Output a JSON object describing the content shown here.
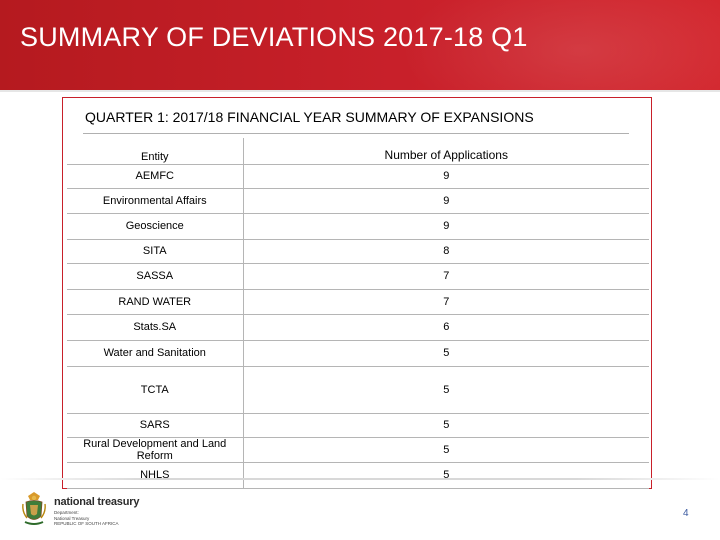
{
  "slide": {
    "title": "SUMMARY OF DEVIATIONS 2017-18 Q1",
    "page_number": "4"
  },
  "table": {
    "caption": "QUARTER 1: 2017/18 FINANCIAL YEAR SUMMARY OF EXPANSIONS",
    "headers": {
      "entity": "Entity",
      "count": "Number of Applications"
    },
    "rows": [
      {
        "entity": "AEMFC",
        "count": "9"
      },
      {
        "entity": "Environmental Affairs",
        "count": "9"
      },
      {
        "entity": "Geoscience",
        "count": "9"
      },
      {
        "entity": "SITA",
        "count": "8"
      },
      {
        "entity": "SASSA",
        "count": "7"
      },
      {
        "entity": "RAND WATER",
        "count": "7"
      },
      {
        "entity": "Stats.SA",
        "count": "6"
      },
      {
        "entity": "Water and Sanitation",
        "count": "5"
      },
      {
        "entity": "TCTA",
        "count": "5"
      },
      {
        "entity": "SARS",
        "count": "5"
      },
      {
        "entity": "Rural Development and Land Reform",
        "count": "5"
      },
      {
        "entity": "NHLS",
        "count": "5"
      }
    ]
  },
  "footer": {
    "logo_text": "national treasury",
    "logo_sub_1": "Department:",
    "logo_sub_2": "National Treasury",
    "logo_sub_3": "REPUBLIC OF SOUTH AFRICA"
  },
  "colors": {
    "accent": "#c8202a",
    "page_number": "#3a5aa0"
  }
}
